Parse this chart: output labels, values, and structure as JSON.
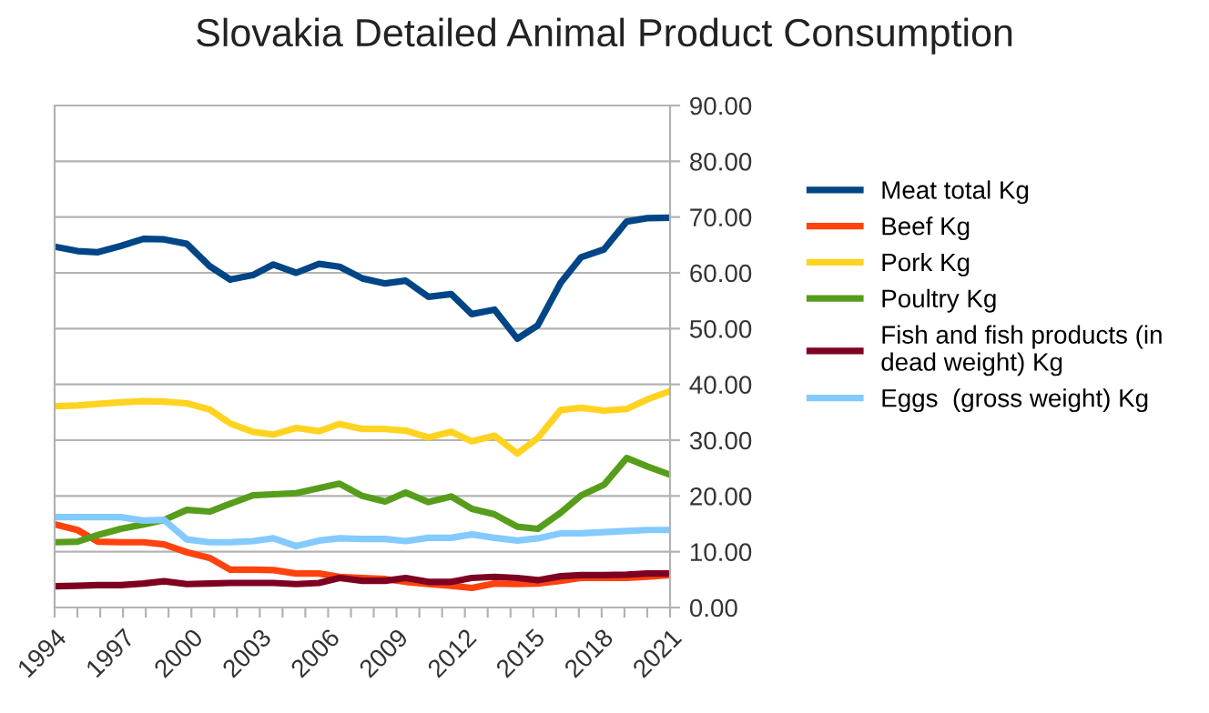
{
  "chart_data": {
    "type": "line",
    "title": "Slovakia Detailed Animal Product Consumption",
    "x": [
      1994,
      1995,
      1995.9,
      1996.9,
      1997.9,
      1998.8,
      1999.8,
      2000.8,
      2001.7,
      2002.7,
      2003.6,
      2004.6,
      2005.6,
      2006.5,
      2007.5,
      2008.5,
      2009.4,
      2010.4,
      2011.4,
      2012.3,
      2013.3,
      2014.3,
      2015.2,
      2016.2,
      2017.1,
      2018.1,
      2019.1,
      2020,
      2021
    ],
    "xlim": [
      1994,
      2021
    ],
    "xticks": [
      1994,
      {
        "value": 1995,
        "label": null
      },
      {
        "value": 1996,
        "label": null
      },
      1997,
      {
        "value": 1998,
        "label": null
      },
      {
        "value": 1999,
        "label": null
      },
      2000,
      {
        "value": 2001,
        "label": null
      },
      {
        "value": 2002,
        "label": null
      },
      2003,
      {
        "value": 2004,
        "label": null
      },
      {
        "value": 2005,
        "label": null
      },
      2006,
      {
        "value": 2007,
        "label": null
      },
      {
        "value": 2008,
        "label": null
      },
      2009,
      {
        "value": 2010,
        "label": null
      },
      {
        "value": 2011,
        "label": null
      },
      2012,
      {
        "value": 2013,
        "label": null
      },
      {
        "value": 2014,
        "label": null
      },
      2015,
      {
        "value": 2016,
        "label": null
      },
      {
        "value": 2017,
        "label": null
      },
      2018,
      {
        "value": 2019,
        "label": null
      },
      {
        "value": 2020,
        "label": null
      },
      2021
    ],
    "ylim": [
      0,
      90
    ],
    "yticks": [
      {
        "value": 0,
        "label": "0.00"
      },
      {
        "value": 10,
        "label": "10.00"
      },
      {
        "value": 20,
        "label": "20.00"
      },
      {
        "value": 30,
        "label": "30.00"
      },
      {
        "value": 40,
        "label": "40.00"
      },
      {
        "value": 50,
        "label": "50.00"
      },
      {
        "value": 60,
        "label": "60.00"
      },
      {
        "value": 70,
        "label": "70.00"
      },
      {
        "value": 80,
        "label": "80.00"
      },
      {
        "value": 90,
        "label": "90.00"
      }
    ],
    "grid": "y",
    "legend": "right",
    "marker": "none",
    "line_style": "solid",
    "series": [
      {
        "name": "Meat total Kg",
        "color": "#004586",
        "values": [
          64.7,
          63.9,
          63.7,
          64.8,
          66.1,
          66.0,
          65.2,
          61.2,
          58.8,
          59.6,
          61.5,
          60.0,
          61.6,
          61.1,
          59.0,
          58.1,
          58.6,
          55.7,
          56.2,
          52.6,
          53.4,
          48.2,
          50.6,
          58.2,
          62.8,
          64.2,
          69.2,
          69.8,
          69.9
        ]
      },
      {
        "name": "Beef Kg",
        "color": "#ff420e",
        "values": [
          14.9,
          13.9,
          11.8,
          11.7,
          11.7,
          11.3,
          9.9,
          8.9,
          6.8,
          6.8,
          6.7,
          6.1,
          6.1,
          5.5,
          5.3,
          5.1,
          4.6,
          4.2,
          3.9,
          3.5,
          4.3,
          4.2,
          4.3,
          4.8,
          5.3,
          5.3,
          5.3,
          5.5,
          5.8
        ]
      },
      {
        "name": "Pork Kg",
        "color": "#ffd320",
        "values": [
          36.1,
          36.2,
          36.5,
          36.8,
          37.0,
          36.9,
          36.6,
          35.5,
          33.0,
          31.5,
          31.0,
          32.2,
          31.6,
          32.9,
          32.0,
          32.0,
          31.7,
          30.5,
          31.5,
          29.8,
          30.8,
          27.6,
          30.4,
          35.4,
          35.8,
          35.3,
          35.6,
          37.3,
          38.8
        ]
      },
      {
        "name": "Poultry Kg",
        "color": "#579d1c",
        "values": [
          11.7,
          11.8,
          13.0,
          14.1,
          14.9,
          15.7,
          17.5,
          17.2,
          18.6,
          20.1,
          20.3,
          20.5,
          21.4,
          22.2,
          20.0,
          19.0,
          20.6,
          18.9,
          19.9,
          17.7,
          16.7,
          14.5,
          14.1,
          17.0,
          20.1,
          22.0,
          26.8,
          25.3,
          23.8
        ]
      },
      {
        "name": "Fish and fish products (in dead weight) Kg",
        "color": "#7e0021",
        "values": [
          3.8,
          3.9,
          4.0,
          4.0,
          4.3,
          4.7,
          4.2,
          4.3,
          4.4,
          4.4,
          4.4,
          4.2,
          4.4,
          5.3,
          4.8,
          4.8,
          5.3,
          4.6,
          4.6,
          5.3,
          5.5,
          5.3,
          4.9,
          5.6,
          5.8,
          5.8,
          5.9,
          6.1,
          6.1
        ]
      },
      {
        "name": "Eggs  (gross weight) Kg",
        "color": "#83caff",
        "values": [
          16.2,
          16.2,
          16.2,
          16.2,
          15.6,
          15.7,
          12.2,
          11.7,
          11.7,
          11.9,
          12.4,
          11.0,
          12.0,
          12.4,
          12.3,
          12.3,
          11.9,
          12.5,
          12.5,
          13.1,
          12.5,
          12.0,
          12.4,
          13.3,
          13.3,
          13.5,
          13.7,
          13.9,
          13.9
        ]
      }
    ]
  }
}
